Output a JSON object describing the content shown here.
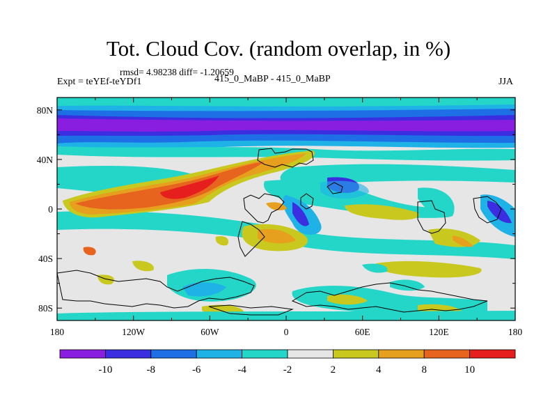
{
  "title": "Tot. Cloud Cov. (random overlap, in %)",
  "stats_line": "rmsd= 4.98238 diff= -1.20659",
  "experiment_label": "Expt = teYEf-teYDf1",
  "case_label": "415_0_MaBP - 415_0_MaBP",
  "season_label": "JJA",
  "map": {
    "projection": "cylindrical-equidistant",
    "lon_range": [
      -180,
      180
    ],
    "lat_range": [
      -90,
      90
    ],
    "lat_ticks": [
      {
        "value": 80,
        "label": "80N"
      },
      {
        "value": 40,
        "label": "40N"
      },
      {
        "value": 0,
        "label": "0"
      },
      {
        "value": -40,
        "label": "40S"
      },
      {
        "value": -80,
        "label": "80S"
      }
    ],
    "lon_ticks": [
      {
        "value": -180,
        "label": "180"
      },
      {
        "value": -120,
        "label": "120W"
      },
      {
        "value": -60,
        "label": "60W"
      },
      {
        "value": 0,
        "label": "0"
      },
      {
        "value": 60,
        "label": "60E"
      },
      {
        "value": 120,
        "label": "120E"
      },
      {
        "value": 180,
        "label": "180"
      }
    ],
    "grid": false,
    "coastlines": true
  },
  "colorbar": {
    "labels": [
      "-10",
      "-8",
      "-6",
      "-4",
      "-2",
      "2",
      "4",
      "8",
      "10"
    ],
    "colors": [
      "#8a1ee0",
      "#3a2ee0",
      "#1e6ee6",
      "#1eb2e6",
      "#24d6c8",
      "#e6e6e6",
      "#c8c81e",
      "#e6a01e",
      "#e6641e",
      "#e61e1e"
    ]
  }
}
